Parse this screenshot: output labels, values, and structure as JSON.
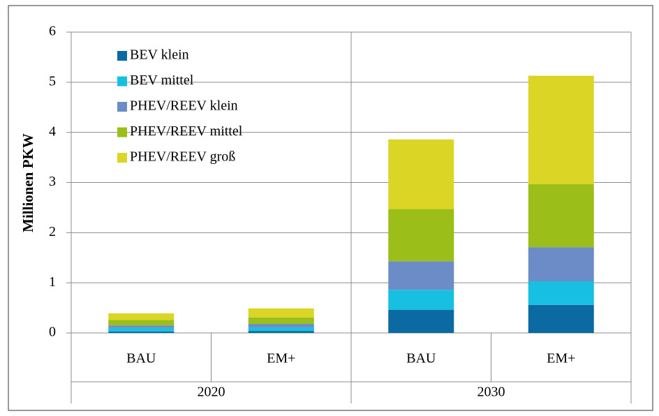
{
  "chart_data": {
    "type": "stacked_bar",
    "y_label": "Millionen PKW",
    "categories": [
      "BAU",
      "EM+",
      "BAU",
      "EM+"
    ],
    "category_groups": [
      "2020",
      "2030"
    ],
    "series": [
      {
        "name": "BEV klein",
        "color": "#0a6aa1",
        "values": [
          0.03,
          0.04,
          0.46,
          0.56
        ]
      },
      {
        "name": "BEV mittel",
        "color": "#17bfe0",
        "values": [
          0.07,
          0.07,
          0.4,
          0.47
        ]
      },
      {
        "name": "PHEV/REEV klein",
        "color": "#6b8cc7",
        "values": [
          0.05,
          0.07,
          0.57,
          0.68
        ]
      },
      {
        "name": "PHEV/REEV mittel",
        "color": "#9bbf18",
        "values": [
          0.11,
          0.13,
          1.04,
          1.26
        ]
      },
      {
        "name": "PHEV/REEV groß",
        "color": "#dbd626",
        "values": [
          0.13,
          0.18,
          1.39,
          2.16
        ]
      }
    ],
    "ylim": [
      0,
      6
    ],
    "yticks": [
      0,
      1,
      2,
      3,
      4,
      5,
      6
    ],
    "grid": true,
    "legend": "upper left"
  }
}
